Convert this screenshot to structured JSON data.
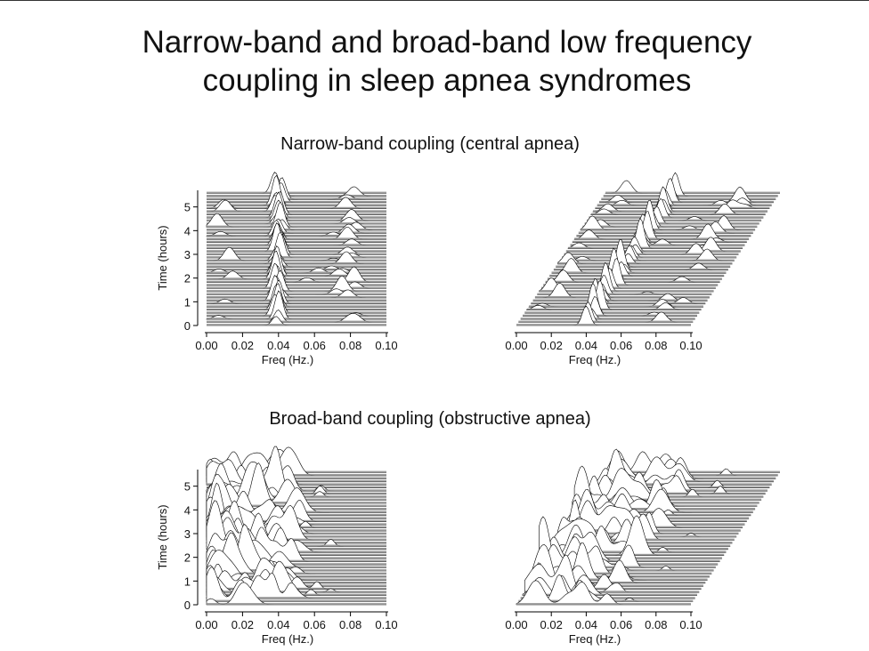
{
  "slide": {
    "title_line1": "Narrow-band and broad-band low frequency",
    "title_line2": "coupling in sleep apnea syndromes"
  },
  "chart_data": [
    {
      "type": "area",
      "subtype": "waterfall-3d",
      "title": "Narrow-band coupling (central apnea)",
      "view": "front",
      "xlabel": "Freq (Hz.)",
      "ylabel": "Time (hours)",
      "xlim": [
        0,
        0.1
      ],
      "ylim": [
        0,
        5.7
      ],
      "x_ticks": [
        "0.00",
        "0.02",
        "0.04",
        "0.06",
        "0.08",
        "0.10"
      ],
      "y_ticks": [
        "0",
        "1",
        "2",
        "3",
        "4",
        "5"
      ],
      "dominant_peak_hz": 0.04,
      "secondary_peaks_hz": [
        0.01,
        0.08
      ],
      "fill_color": "#8a8a8a"
    },
    {
      "type": "area",
      "subtype": "waterfall-3d",
      "title": "Narrow-band coupling (central apnea)",
      "view": "oblique",
      "xlabel": "Freq (Hz.)",
      "xlim": [
        0,
        0.1
      ],
      "x_ticks": [
        "0.00",
        "0.02",
        "0.04",
        "0.06",
        "0.08",
        "0.10"
      ],
      "dominant_peak_hz": 0.04,
      "secondary_peaks_hz": [
        0.01,
        0.08
      ],
      "fill_color": "#8a8a8a"
    },
    {
      "type": "area",
      "subtype": "waterfall-3d",
      "title": "Broad-band coupling (obstructive apnea)",
      "view": "front",
      "xlabel": "Freq (Hz.)",
      "ylabel": "Time (hours)",
      "xlim": [
        0,
        0.1
      ],
      "ylim": [
        0,
        5.7
      ],
      "x_ticks": [
        "0.00",
        "0.02",
        "0.04",
        "0.06",
        "0.08",
        "0.10"
      ],
      "y_ticks": [
        "0",
        "1",
        "2",
        "3",
        "4",
        "5"
      ],
      "peak_band_hz": [
        0.0,
        0.05
      ],
      "fill_color": "#8a8a8a"
    },
    {
      "type": "area",
      "subtype": "waterfall-3d",
      "title": "Broad-band coupling (obstructive apnea)",
      "view": "oblique",
      "xlabel": "Freq (Hz.)",
      "xlim": [
        0,
        0.1
      ],
      "x_ticks": [
        "0.00",
        "0.02",
        "0.04",
        "0.06",
        "0.08",
        "0.10"
      ],
      "peak_band_hz": [
        0.0,
        0.05
      ],
      "fill_color": "#8a8a8a"
    }
  ]
}
